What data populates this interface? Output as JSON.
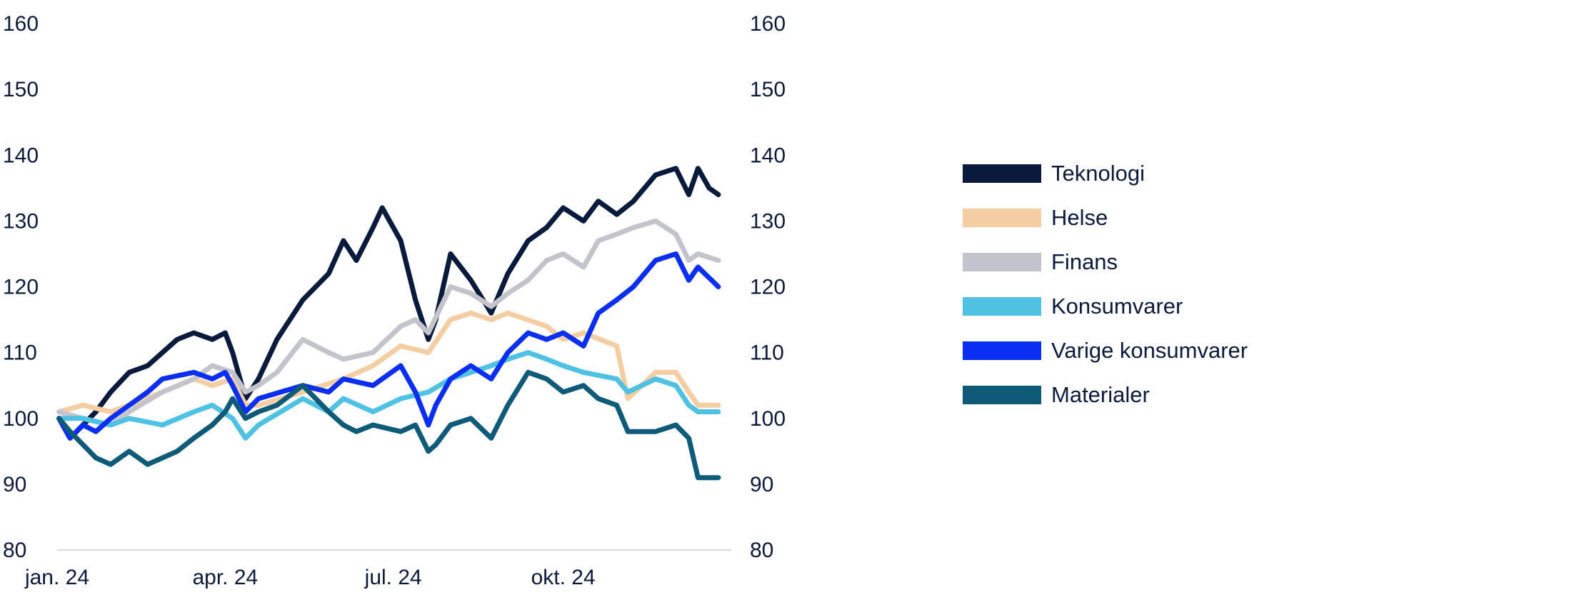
{
  "chart_data": {
    "type": "line",
    "title": "",
    "xlabel": "",
    "ylabel": "",
    "ylim": [
      80,
      160
    ],
    "y_ticks": [
      80,
      90,
      100,
      110,
      120,
      130,
      140,
      150,
      160
    ],
    "y_axes": [
      "left",
      "right"
    ],
    "grid": false,
    "legend_placement": "right",
    "x_domain": [
      "2024-01-01",
      "2024-12-31"
    ],
    "x_ticks": [
      {
        "label": "jan. 24",
        "date": "2024-01-01"
      },
      {
        "label": "apr. 24",
        "date": "2024-04-01"
      },
      {
        "label": "jul. 24",
        "date": "2024-07-01"
      },
      {
        "label": "okt. 24",
        "date": "2024-10-01"
      }
    ],
    "series": [
      {
        "name": "Teknologi",
        "color": "#0a1a3d",
        "points": [
          [
            "2024-01-02",
            100
          ],
          [
            "2024-01-08",
            97
          ],
          [
            "2024-01-15",
            99
          ],
          [
            "2024-01-22",
            101
          ],
          [
            "2024-01-30",
            104
          ],
          [
            "2024-02-09",
            107
          ],
          [
            "2024-02-19",
            108
          ],
          [
            "2024-02-27",
            110
          ],
          [
            "2024-03-06",
            112
          ],
          [
            "2024-03-15",
            113
          ],
          [
            "2024-03-25",
            112
          ],
          [
            "2024-04-01",
            113
          ],
          [
            "2024-04-05",
            110
          ],
          [
            "2024-04-12",
            103
          ],
          [
            "2024-04-19",
            106
          ],
          [
            "2024-04-29",
            112
          ],
          [
            "2024-05-13",
            118
          ],
          [
            "2024-05-27",
            122
          ],
          [
            "2024-06-04",
            127
          ],
          [
            "2024-06-11",
            124
          ],
          [
            "2024-06-20",
            129
          ],
          [
            "2024-06-25",
            132
          ],
          [
            "2024-07-05",
            127
          ],
          [
            "2024-07-13",
            118
          ],
          [
            "2024-07-20",
            112
          ],
          [
            "2024-07-24",
            115
          ],
          [
            "2024-08-01",
            125
          ],
          [
            "2024-08-12",
            121
          ],
          [
            "2024-08-23",
            116
          ],
          [
            "2024-09-01",
            122
          ],
          [
            "2024-09-12",
            127
          ],
          [
            "2024-09-22",
            129
          ],
          [
            "2024-10-01",
            132
          ],
          [
            "2024-10-12",
            130
          ],
          [
            "2024-10-20",
            133
          ],
          [
            "2024-10-30",
            131
          ],
          [
            "2024-11-08",
            133
          ],
          [
            "2024-11-20",
            137
          ],
          [
            "2024-12-01",
            138
          ],
          [
            "2024-12-08",
            134
          ],
          [
            "2024-12-13",
            138
          ],
          [
            "2024-12-19",
            135
          ],
          [
            "2024-12-24",
            134
          ]
        ]
      },
      {
        "name": "Helse",
        "color": "#f5cda3",
        "points": [
          [
            "2024-01-02",
            101
          ],
          [
            "2024-01-15",
            102
          ],
          [
            "2024-01-30",
            101
          ],
          [
            "2024-02-09",
            102
          ],
          [
            "2024-02-27",
            104
          ],
          [
            "2024-03-15",
            106
          ],
          [
            "2024-03-25",
            105
          ],
          [
            "2024-04-05",
            106
          ],
          [
            "2024-04-12",
            102
          ],
          [
            "2024-04-19",
            102
          ],
          [
            "2024-05-13",
            104
          ],
          [
            "2024-06-04",
            106
          ],
          [
            "2024-06-20",
            108
          ],
          [
            "2024-07-05",
            111
          ],
          [
            "2024-07-20",
            110
          ],
          [
            "2024-08-01",
            115
          ],
          [
            "2024-08-12",
            116
          ],
          [
            "2024-08-23",
            115
          ],
          [
            "2024-09-01",
            116
          ],
          [
            "2024-09-22",
            114
          ],
          [
            "2024-10-01",
            112
          ],
          [
            "2024-10-12",
            113
          ],
          [
            "2024-10-30",
            111
          ],
          [
            "2024-11-05",
            103
          ],
          [
            "2024-11-20",
            107
          ],
          [
            "2024-12-01",
            107
          ],
          [
            "2024-12-08",
            104
          ],
          [
            "2024-12-13",
            102
          ],
          [
            "2024-12-24",
            102
          ]
        ]
      },
      {
        "name": "Finans",
        "color": "#c3c4cb",
        "points": [
          [
            "2024-01-02",
            101
          ],
          [
            "2024-01-15",
            100
          ],
          [
            "2024-01-30",
            99
          ],
          [
            "2024-02-09",
            101
          ],
          [
            "2024-02-27",
            104
          ],
          [
            "2024-03-15",
            106
          ],
          [
            "2024-03-25",
            108
          ],
          [
            "2024-04-05",
            107
          ],
          [
            "2024-04-12",
            104
          ],
          [
            "2024-04-19",
            105
          ],
          [
            "2024-04-29",
            107
          ],
          [
            "2024-05-13",
            112
          ],
          [
            "2024-05-27",
            110
          ],
          [
            "2024-06-04",
            109
          ],
          [
            "2024-06-20",
            110
          ],
          [
            "2024-07-05",
            114
          ],
          [
            "2024-07-13",
            115
          ],
          [
            "2024-07-20",
            113
          ],
          [
            "2024-08-01",
            120
          ],
          [
            "2024-08-12",
            119
          ],
          [
            "2024-08-23",
            117
          ],
          [
            "2024-09-01",
            119
          ],
          [
            "2024-09-12",
            121
          ],
          [
            "2024-09-22",
            124
          ],
          [
            "2024-10-01",
            125
          ],
          [
            "2024-10-12",
            123
          ],
          [
            "2024-10-20",
            127
          ],
          [
            "2024-10-30",
            128
          ],
          [
            "2024-11-08",
            129
          ],
          [
            "2024-11-20",
            130
          ],
          [
            "2024-12-01",
            128
          ],
          [
            "2024-12-08",
            124
          ],
          [
            "2024-12-13",
            125
          ],
          [
            "2024-12-24",
            124
          ]
        ]
      },
      {
        "name": "Konsumvarer",
        "color": "#4fc1e2",
        "points": [
          [
            "2024-01-02",
            100
          ],
          [
            "2024-01-15",
            100
          ],
          [
            "2024-01-30",
            99
          ],
          [
            "2024-02-09",
            100
          ],
          [
            "2024-02-27",
            99
          ],
          [
            "2024-03-15",
            101
          ],
          [
            "2024-03-25",
            102
          ],
          [
            "2024-04-05",
            100
          ],
          [
            "2024-04-12",
            97
          ],
          [
            "2024-04-19",
            99
          ],
          [
            "2024-05-13",
            103
          ],
          [
            "2024-05-27",
            101
          ],
          [
            "2024-06-04",
            103
          ],
          [
            "2024-06-20",
            101
          ],
          [
            "2024-07-05",
            103
          ],
          [
            "2024-07-20",
            104
          ],
          [
            "2024-08-01",
            106
          ],
          [
            "2024-08-12",
            107
          ],
          [
            "2024-08-23",
            108
          ],
          [
            "2024-09-01",
            109
          ],
          [
            "2024-09-12",
            110
          ],
          [
            "2024-09-22",
            109
          ],
          [
            "2024-10-01",
            108
          ],
          [
            "2024-10-12",
            107
          ],
          [
            "2024-10-30",
            106
          ],
          [
            "2024-11-05",
            104
          ],
          [
            "2024-11-20",
            106
          ],
          [
            "2024-12-01",
            105
          ],
          [
            "2024-12-08",
            102
          ],
          [
            "2024-12-13",
            101
          ],
          [
            "2024-12-24",
            101
          ]
        ]
      },
      {
        "name": "Varige konsumvarer",
        "color": "#0a2ff0",
        "points": [
          [
            "2024-01-02",
            100
          ],
          [
            "2024-01-08",
            97
          ],
          [
            "2024-01-15",
            99
          ],
          [
            "2024-01-22",
            98
          ],
          [
            "2024-01-30",
            100
          ],
          [
            "2024-02-09",
            102
          ],
          [
            "2024-02-19",
            104
          ],
          [
            "2024-02-27",
            106
          ],
          [
            "2024-03-15",
            107
          ],
          [
            "2024-03-25",
            106
          ],
          [
            "2024-04-01",
            107
          ],
          [
            "2024-04-05",
            105
          ],
          [
            "2024-04-12",
            101
          ],
          [
            "2024-04-19",
            103
          ],
          [
            "2024-05-13",
            105
          ],
          [
            "2024-05-27",
            104
          ],
          [
            "2024-06-04",
            106
          ],
          [
            "2024-06-20",
            105
          ],
          [
            "2024-07-05",
            108
          ],
          [
            "2024-07-13",
            104
          ],
          [
            "2024-07-20",
            99
          ],
          [
            "2024-07-24",
            102
          ],
          [
            "2024-08-01",
            106
          ],
          [
            "2024-08-12",
            108
          ],
          [
            "2024-08-23",
            106
          ],
          [
            "2024-09-01",
            110
          ],
          [
            "2024-09-12",
            113
          ],
          [
            "2024-09-22",
            112
          ],
          [
            "2024-10-01",
            113
          ],
          [
            "2024-10-12",
            111
          ],
          [
            "2024-10-20",
            116
          ],
          [
            "2024-10-30",
            118
          ],
          [
            "2024-11-08",
            120
          ],
          [
            "2024-11-20",
            124
          ],
          [
            "2024-12-01",
            125
          ],
          [
            "2024-12-08",
            121
          ],
          [
            "2024-12-13",
            123
          ],
          [
            "2024-12-24",
            120
          ]
        ]
      },
      {
        "name": "Materialer",
        "color": "#0e5a78",
        "points": [
          [
            "2024-01-02",
            100
          ],
          [
            "2024-01-08",
            98
          ],
          [
            "2024-01-15",
            96
          ],
          [
            "2024-01-22",
            94
          ],
          [
            "2024-01-30",
            93
          ],
          [
            "2024-02-09",
            95
          ],
          [
            "2024-02-19",
            93
          ],
          [
            "2024-02-27",
            94
          ],
          [
            "2024-03-06",
            95
          ],
          [
            "2024-03-15",
            97
          ],
          [
            "2024-03-25",
            99
          ],
          [
            "2024-04-01",
            101
          ],
          [
            "2024-04-05",
            103
          ],
          [
            "2024-04-12",
            100
          ],
          [
            "2024-04-19",
            101
          ],
          [
            "2024-04-29",
            102
          ],
          [
            "2024-05-13",
            105
          ],
          [
            "2024-05-27",
            101
          ],
          [
            "2024-06-04",
            99
          ],
          [
            "2024-06-11",
            98
          ],
          [
            "2024-06-20",
            99
          ],
          [
            "2024-07-05",
            98
          ],
          [
            "2024-07-13",
            99
          ],
          [
            "2024-07-20",
            95
          ],
          [
            "2024-07-24",
            96
          ],
          [
            "2024-08-01",
            99
          ],
          [
            "2024-08-12",
            100
          ],
          [
            "2024-08-23",
            97
          ],
          [
            "2024-09-01",
            102
          ],
          [
            "2024-09-12",
            107
          ],
          [
            "2024-09-22",
            106
          ],
          [
            "2024-10-01",
            104
          ],
          [
            "2024-10-12",
            105
          ],
          [
            "2024-10-20",
            103
          ],
          [
            "2024-10-30",
            102
          ],
          [
            "2024-11-05",
            98
          ],
          [
            "2024-11-20",
            98
          ],
          [
            "2024-12-01",
            99
          ],
          [
            "2024-12-08",
            97
          ],
          [
            "2024-12-13",
            91
          ],
          [
            "2024-12-24",
            91
          ]
        ]
      }
    ]
  }
}
